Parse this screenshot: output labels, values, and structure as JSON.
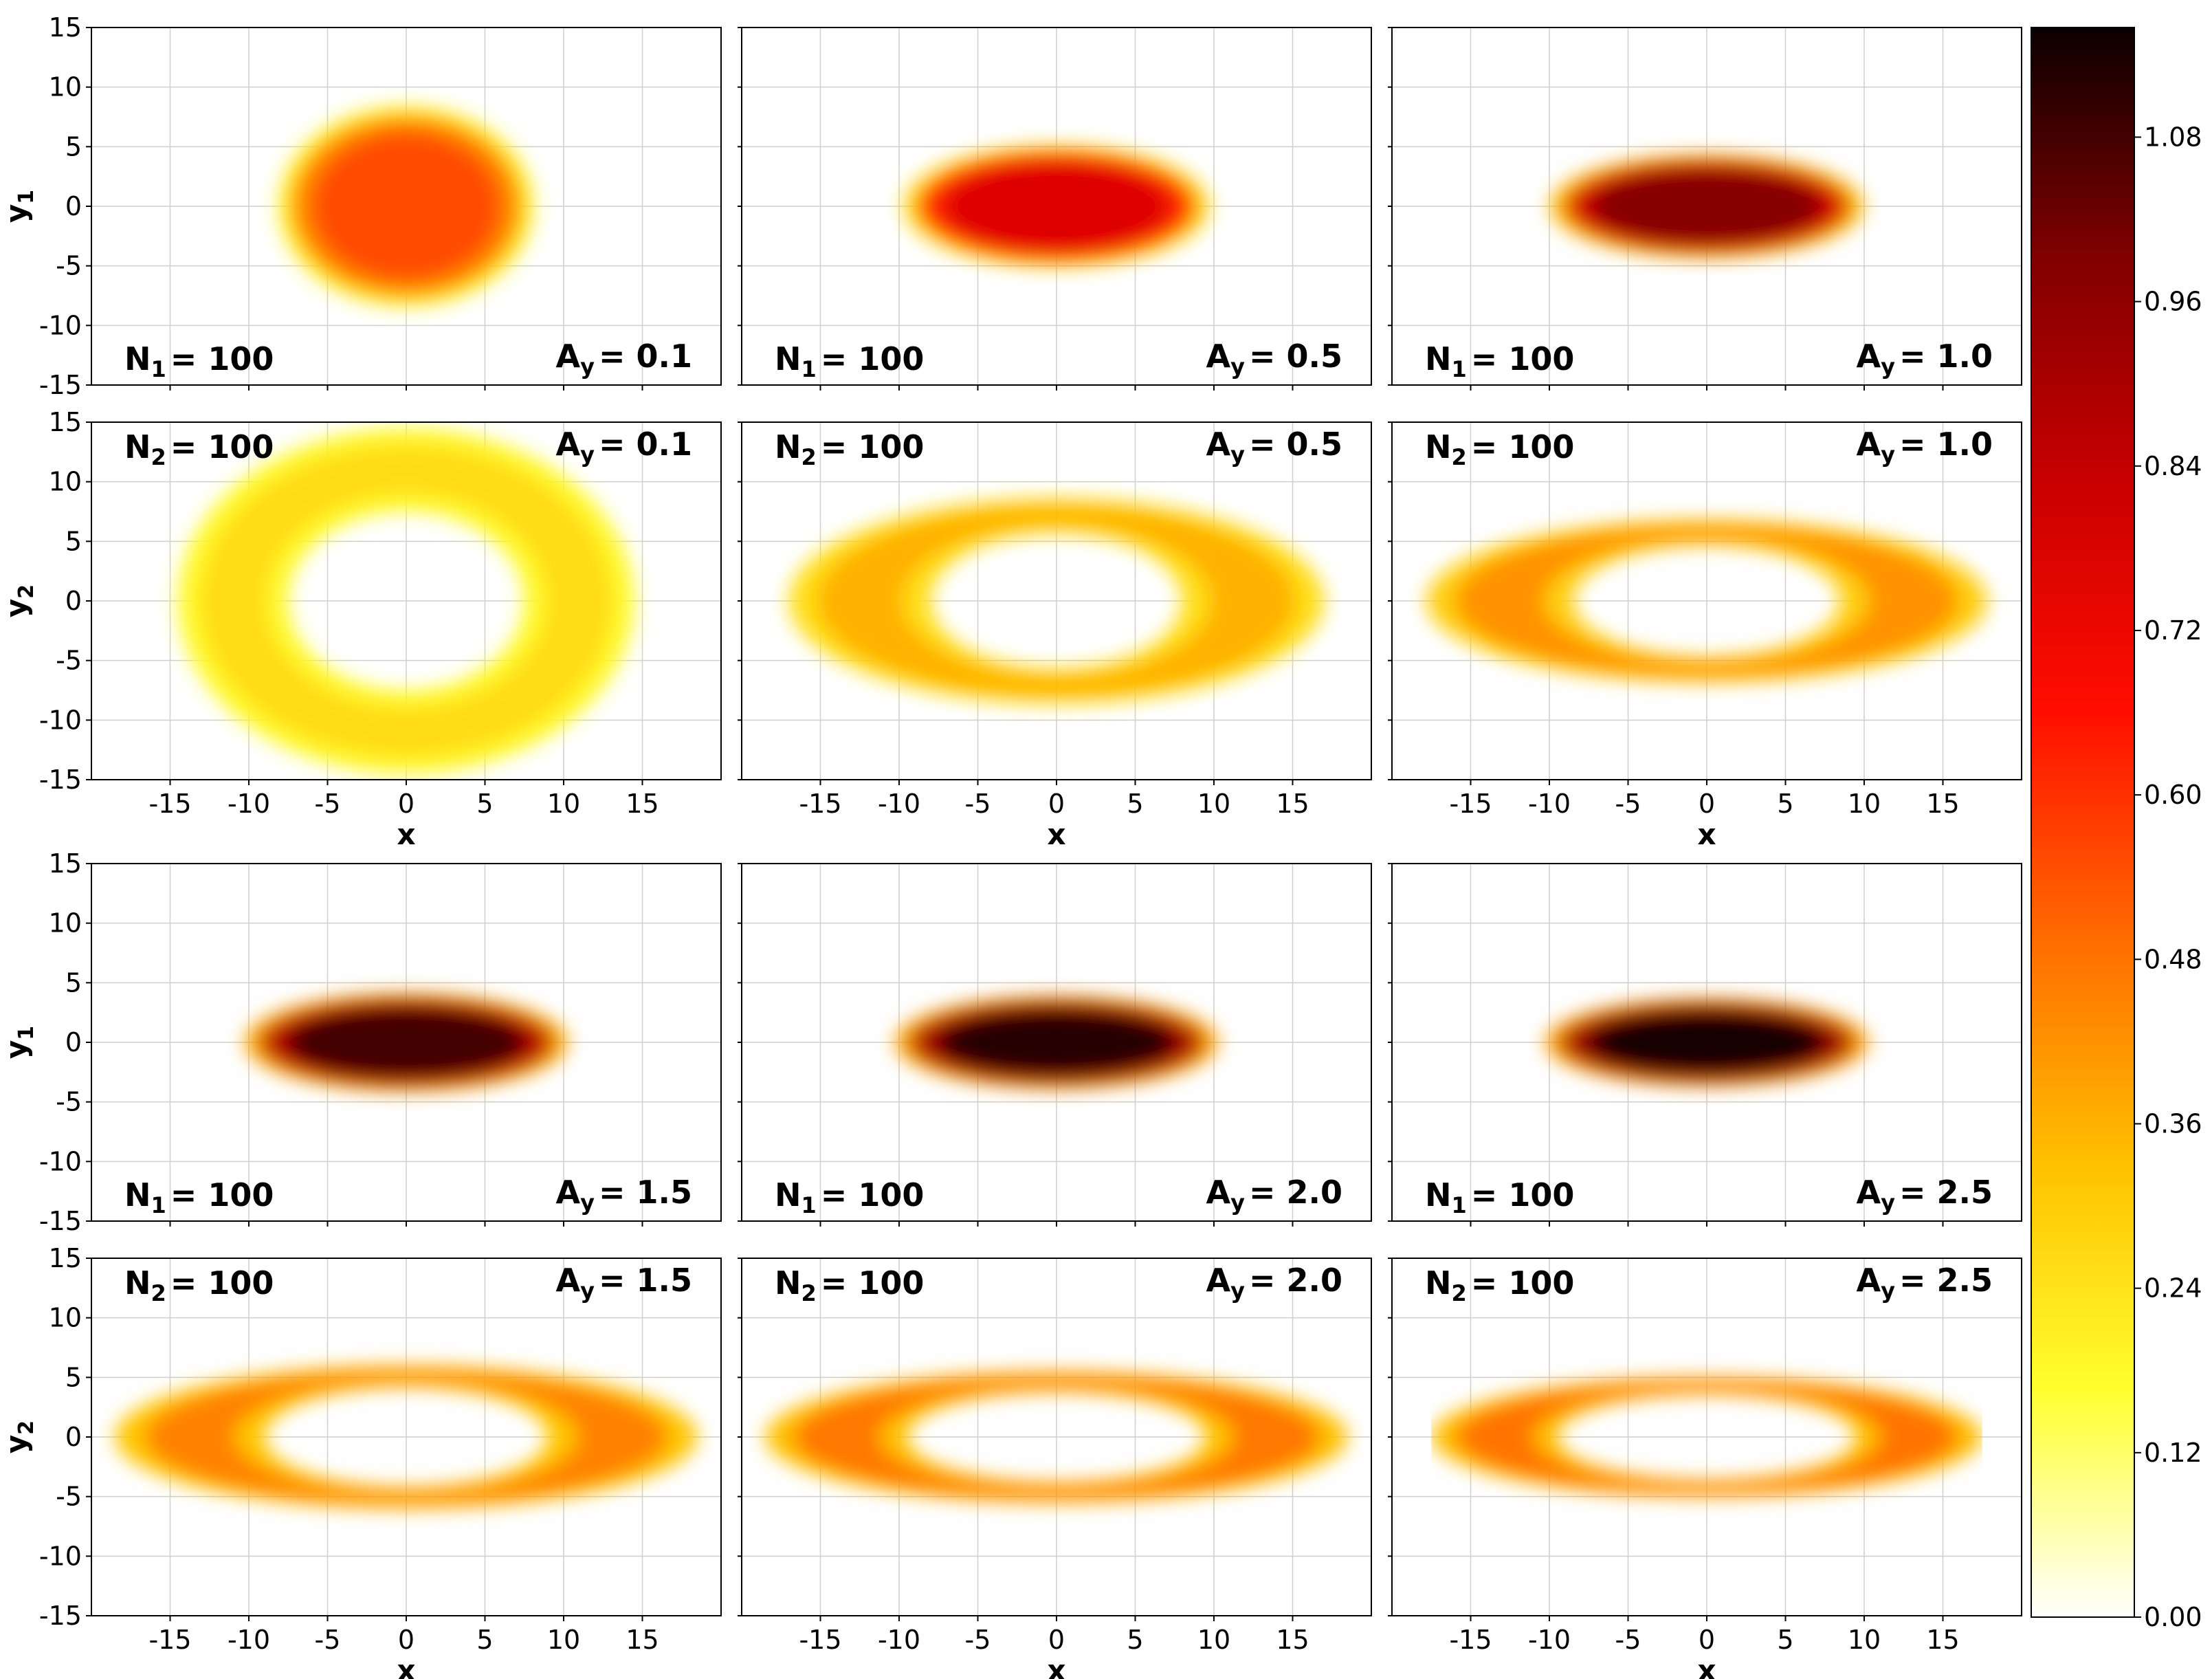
{
  "chart_data": {
    "type": "heatmap",
    "colormap": "hot_r",
    "colorbar": {
      "ticks": [
        "0.00",
        "0.12",
        "0.24",
        "0.36",
        "0.48",
        "0.60",
        "0.72",
        "0.84",
        "0.96",
        "1.08"
      ],
      "range": [
        0,
        1.16
      ]
    },
    "x_ticks": [
      "-15",
      "-10",
      "-5",
      "0",
      "5",
      "10",
      "15"
    ],
    "y_ticks": [
      "15",
      "10",
      "5",
      "0",
      "-5",
      "-10",
      "-15"
    ],
    "xlim": [
      -20,
      20
    ],
    "ylim": [
      -15,
      15
    ],
    "grid": true,
    "panels": [
      {
        "row": 0,
        "col": 0,
        "shape": "disk",
        "ylabel": "y",
        "ysub": "1",
        "n_sym": "N",
        "n_sub": "1",
        "n_val": "= 100",
        "a_val": "= 0.1",
        "ann_pos": "bottom",
        "x_axis": false,
        "rx": 7.5,
        "ry": 7.8,
        "peak": 0.55
      },
      {
        "row": 0,
        "col": 1,
        "shape": "disk",
        "ylabel": "",
        "ysub": "",
        "n_sym": "N",
        "n_sub": "1",
        "n_val": "= 100",
        "a_val": "= 0.5",
        "ann_pos": "bottom",
        "x_axis": false,
        "rx": 9.0,
        "ry": 4.7,
        "peak": 0.76
      },
      {
        "row": 0,
        "col": 2,
        "shape": "disk",
        "ylabel": "",
        "ysub": "",
        "n_sym": "N",
        "n_sub": "1",
        "n_val": "= 100",
        "a_val": "= 1.0",
        "ann_pos": "bottom",
        "x_axis": false,
        "rx": 9.2,
        "ry": 4.0,
        "peak": 0.98
      },
      {
        "row": 1,
        "col": 0,
        "shape": "ring",
        "ylabel": "y",
        "ysub": "2",
        "n_sym": "N",
        "n_sub": "2",
        "n_val": "= 100",
        "a_val": "= 0.1",
        "ann_pos": "top",
        "x_axis": true,
        "rin": 7.5,
        "rout": 14.5,
        "peak": 0.26
      },
      {
        "row": 1,
        "col": 1,
        "shape": "ring",
        "ylabel": "",
        "ysub": "",
        "n_sym": "N",
        "n_sub": "2",
        "n_val": "= 100",
        "a_val": "= 0.5",
        "ann_pos": "top",
        "x_axis": true,
        "rin": 8.0,
        "rout": 17.0,
        "ryin": 5.7,
        "ryout": 8.6,
        "peak": 0.36
      },
      {
        "row": 1,
        "col": 2,
        "shape": "ring",
        "ylabel": "",
        "ysub": "",
        "n_sym": "N",
        "n_sub": "2",
        "n_val": "= 100",
        "a_val": "= 1.0",
        "ann_pos": "top",
        "x_axis": true,
        "rin": 8.5,
        "rout": 17.8,
        "ryin": 4.7,
        "ryout": 6.8,
        "peak": 0.42
      },
      {
        "row": 2,
        "col": 0,
        "shape": "disk",
        "ylabel": "y",
        "ysub": "1",
        "n_sym": "N",
        "n_sub": "1",
        "n_val": "= 100",
        "a_val": "= 1.5",
        "ann_pos": "bottom",
        "x_axis": false,
        "rx": 9.5,
        "ry": 3.8,
        "peak": 1.08
      },
      {
        "row": 2,
        "col": 1,
        "shape": "disk",
        "ylabel": "",
        "ysub": "",
        "n_sym": "N",
        "n_sub": "1",
        "n_val": "= 100",
        "a_val": "= 2.0",
        "ann_pos": "bottom",
        "x_axis": false,
        "rx": 9.5,
        "ry": 3.6,
        "peak": 1.12
      },
      {
        "row": 2,
        "col": 2,
        "shape": "disk",
        "ylabel": "",
        "ysub": "",
        "n_sym": "N",
        "n_sub": "1",
        "n_val": "= 100",
        "a_val": "= 2.5",
        "ann_pos": "bottom",
        "x_axis": false,
        "rx": 9.5,
        "ry": 3.4,
        "peak": 1.14
      },
      {
        "row": 3,
        "col": 0,
        "shape": "ring",
        "ylabel": "y",
        "ysub": "2",
        "n_sym": "N",
        "n_sub": "2",
        "n_val": "= 100",
        "a_val": "= 1.5",
        "ann_pos": "top",
        "x_axis": true,
        "rin": 9.0,
        "rout": 18.5,
        "ryin": 4.2,
        "ryout": 6.0,
        "peak": 0.45
      },
      {
        "row": 3,
        "col": 1,
        "shape": "ring",
        "ylabel": "",
        "ysub": "",
        "n_sym": "N",
        "n_sub": "2",
        "n_val": "= 100",
        "a_val": "= 2.0",
        "ann_pos": "top",
        "x_axis": true,
        "rin": 9.5,
        "rout": 18.5,
        "ryin": 3.8,
        "ryout": 5.5,
        "peak": 0.47
      },
      {
        "row": 3,
        "col": 2,
        "shape": "ring",
        "ylabel": "",
        "ysub": "",
        "n_sym": "N",
        "n_sub": "2",
        "n_val": "= 100",
        "a_val": "= 2.5",
        "ann_pos": "top",
        "x_axis": true,
        "rin": 9.5,
        "rout": 17.5,
        "ryin": 3.6,
        "ryout": 5.0,
        "peak": 0.48,
        "clip_x": 17.5
      }
    ],
    "xlabel_text": "x",
    "a_sym": "A",
    "a_sub": "y"
  },
  "colors": {
    "hot_r_stops": [
      "#ffffff",
      "#ffff30",
      "#ffc000",
      "#ff6a00",
      "#ff0d00",
      "#c80000",
      "#800000",
      "#0b0000"
    ]
  }
}
